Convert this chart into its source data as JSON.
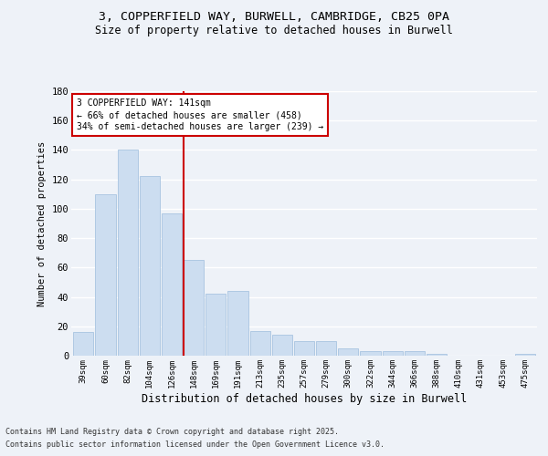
{
  "title_line1": "3, COPPERFIELD WAY, BURWELL, CAMBRIDGE, CB25 0PA",
  "title_line2": "Size of property relative to detached houses in Burwell",
  "xlabel": "Distribution of detached houses by size in Burwell",
  "ylabel": "Number of detached properties",
  "categories": [
    "39sqm",
    "60sqm",
    "82sqm",
    "104sqm",
    "126sqm",
    "148sqm",
    "169sqm",
    "191sqm",
    "213sqm",
    "235sqm",
    "257sqm",
    "279sqm",
    "300sqm",
    "322sqm",
    "344sqm",
    "366sqm",
    "388sqm",
    "410sqm",
    "431sqm",
    "453sqm",
    "475sqm"
  ],
  "values": [
    16,
    110,
    140,
    122,
    97,
    65,
    42,
    44,
    17,
    14,
    10,
    10,
    5,
    3,
    3,
    3,
    1,
    0,
    0,
    0,
    1
  ],
  "bar_color": "#ccddf0",
  "bar_edge_color": "#a8c4e0",
  "vline_index": 5,
  "vline_color": "#cc0000",
  "annotation_line1": "3 COPPERFIELD WAY: 141sqm",
  "annotation_line2": "← 66% of detached houses are smaller (458)",
  "annotation_line3": "34% of semi-detached houses are larger (239) →",
  "annotation_box_color": "#cc0000",
  "background_color": "#eef2f8",
  "grid_color": "#ffffff",
  "ylim": [
    0,
    180
  ],
  "yticks": [
    0,
    20,
    40,
    60,
    80,
    100,
    120,
    140,
    160,
    180
  ],
  "footer_line1": "Contains HM Land Registry data © Crown copyright and database right 2025.",
  "footer_line2": "Contains public sector information licensed under the Open Government Licence v3.0."
}
